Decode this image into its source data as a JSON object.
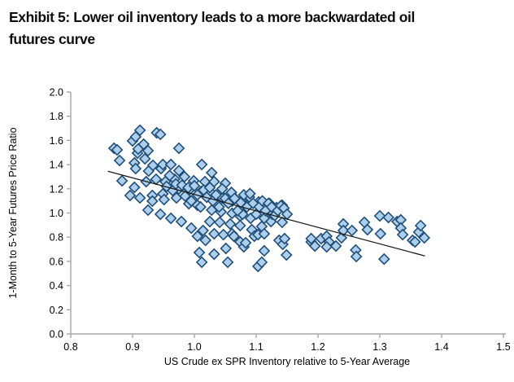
{
  "header": {
    "title_line1": "Exhibit 5: Lower oil inventory leads to a more backwardated oil",
    "title_line2": "futures curve"
  },
  "chart_data": {
    "type": "scatter",
    "title": "Exhibit 5: Lower oil inventory leads to a more backwardated oil futures curve",
    "xlabel": "US Crude ex SPR Inventory relative to 5-Year Average",
    "ylabel": "1-Month to 5-Year Futures Price Ratio",
    "xlim": [
      0.8,
      1.5
    ],
    "ylim": [
      0.0,
      2.0
    ],
    "xticks": [
      0.8,
      0.9,
      1.0,
      1.1,
      1.2,
      1.3,
      1.4,
      1.5
    ],
    "yticks": [
      0.0,
      0.2,
      0.4,
      0.6,
      0.8,
      1.0,
      1.2,
      1.4,
      1.6,
      1.8,
      2.0
    ],
    "grid": false,
    "legend_position": "none",
    "colors": {
      "marker_fill": "#ADCFEC",
      "marker_stroke": "#1F4E79",
      "axis": "#A6A6A6",
      "tick_text": "#000000",
      "trendline": "#1A1A1A"
    },
    "marker_shape": "diamond",
    "trendline": {
      "x1": 0.86,
      "y1": 1.345,
      "x2": 1.373,
      "y2": 0.645
    },
    "points": [
      [
        0.87,
        1.535
      ],
      [
        0.875,
        1.522
      ],
      [
        0.879,
        1.434
      ],
      [
        0.883,
        1.266
      ],
      [
        0.896,
        1.145
      ],
      [
        0.9,
        1.596
      ],
      [
        0.903,
        1.414
      ],
      [
        0.903,
        1.212
      ],
      [
        0.905,
        1.63
      ],
      [
        0.905,
        1.367
      ],
      [
        0.908,
        1.495
      ],
      [
        0.912,
        1.684
      ],
      [
        0.909,
        1.529
      ],
      [
        0.912,
        1.125
      ],
      [
        0.918,
        1.569
      ],
      [
        0.92,
        1.448
      ],
      [
        0.922,
        1.259
      ],
      [
        0.925,
        1.515
      ],
      [
        0.925,
        1.024
      ],
      [
        0.926,
        1.347
      ],
      [
        0.932,
        1.145
      ],
      [
        0.932,
        1.098
      ],
      [
        0.933,
        1.394
      ],
      [
        0.938,
        1.279
      ],
      [
        0.939,
        1.663
      ],
      [
        0.945,
        1.65
      ],
      [
        0.945,
        0.99
      ],
      [
        0.946,
        1.367
      ],
      [
        0.949,
        1.401
      ],
      [
        0.949,
        1.158
      ],
      [
        0.951,
        1.111
      ],
      [
        0.953,
        1.259
      ],
      [
        0.962,
        1.401
      ],
      [
        0.962,
        0.956
      ],
      [
        0.968,
        1.279
      ],
      [
        0.971,
        1.125
      ],
      [
        0.975,
        1.535
      ],
      [
        0.975,
        1.199
      ],
      [
        0.979,
        0.929
      ],
      [
        0.984,
        1.3
      ],
      [
        0.991,
        1.077
      ],
      [
        0.992,
        1.192
      ],
      [
        0.995,
        0.875
      ],
      [
        0.999,
        1.266
      ],
      [
        1.005,
        1.064
      ],
      [
        1.005,
        0.808
      ],
      [
        1.008,
        0.673
      ],
      [
        1.011,
        1.178
      ],
      [
        1.012,
        1.401
      ],
      [
        1.012,
        0.593
      ],
      [
        1.014,
        0.855
      ],
      [
        1.017,
        1.259
      ],
      [
        1.018,
        0.774
      ],
      [
        1.025,
        1.178
      ],
      [
        1.028,
        1.333
      ],
      [
        1.032,
        1.259
      ],
      [
        1.032,
        0.828
      ],
      [
        1.032,
        0.66
      ],
      [
        1.041,
        1.158
      ],
      [
        1.041,
        0.923
      ],
      [
        1.05,
        1.246
      ],
      [
        1.051,
        0.707
      ],
      [
        1.054,
        0.593
      ],
      [
        1.058,
        0.909
      ],
      [
        1.061,
        1.145
      ],
      [
        1.061,
        0.828
      ],
      [
        1.064,
        0.808
      ],
      [
        1.025,
        0.929
      ],
      [
        1.028,
        1.024
      ],
      [
        1.03,
        1.111
      ],
      [
        1.043,
        1.01
      ],
      [
        1.045,
        1.125
      ],
      [
        1.047,
        0.821
      ],
      [
        1.061,
        1.098
      ],
      [
        1.061,
        0.997
      ],
      [
        1.074,
        0.976
      ],
      [
        1.074,
        0.896
      ],
      [
        1.074,
        0.761
      ],
      [
        1.076,
        1.111
      ],
      [
        1.078,
        0.99
      ],
      [
        1.08,
        0.72
      ],
      [
        1.083,
        0.754
      ],
      [
        1.084,
        1.057
      ],
      [
        1.089,
        1.131
      ],
      [
        1.091,
        0.956
      ],
      [
        1.093,
        0.862
      ],
      [
        1.097,
        0.808
      ],
      [
        1.103,
        0.821
      ],
      [
        1.103,
        0.559
      ],
      [
        1.104,
        1.091
      ],
      [
        1.107,
        1.077
      ],
      [
        1.109,
        0.889
      ],
      [
        1.109,
        0.593
      ],
      [
        1.111,
        1.057
      ],
      [
        1.113,
        0.956
      ],
      [
        1.113,
        0.828
      ],
      [
        1.113,
        0.687
      ],
      [
        1.122,
        1.077
      ],
      [
        1.124,
        0.929
      ],
      [
        1.126,
        0.99
      ],
      [
        1.133,
        1.044
      ],
      [
        1.137,
        0.774
      ],
      [
        1.142,
        1.064
      ],
      [
        1.142,
        0.923
      ],
      [
        1.143,
        0.741
      ],
      [
        1.146,
        0.788
      ],
      [
        1.149,
        0.653
      ],
      [
        1.189,
        0.761
      ],
      [
        1.189,
        0.788
      ],
      [
        1.195,
        0.727
      ],
      [
        1.205,
        0.788
      ],
      [
        1.214,
        0.808
      ],
      [
        1.218,
        0.761
      ],
      [
        1.214,
        0.72
      ],
      [
        1.229,
        0.727
      ],
      [
        1.238,
        0.795
      ],
      [
        1.241,
        0.909
      ],
      [
        1.241,
        0.855
      ],
      [
        1.255,
        0.855
      ],
      [
        1.261,
        0.694
      ],
      [
        1.262,
        0.64
      ],
      [
        1.275,
        0.923
      ],
      [
        1.28,
        0.862
      ],
      [
        1.3,
        0.976
      ],
      [
        1.301,
        0.828
      ],
      [
        1.307,
        0.619
      ],
      [
        1.314,
        0.963
      ],
      [
        1.328,
        0.929
      ],
      [
        1.334,
        0.943
      ],
      [
        1.334,
        0.875
      ],
      [
        1.337,
        0.821
      ],
      [
        1.353,
        0.774
      ],
      [
        1.357,
        0.761
      ],
      [
        1.363,
        0.842
      ],
      [
        1.366,
        0.896
      ],
      [
        1.372,
        0.795
      ],
      [
        0.955,
        1.22
      ],
      [
        0.96,
        1.31
      ],
      [
        0.965,
        1.185
      ],
      [
        0.97,
        1.24
      ],
      [
        0.975,
        1.35
      ],
      [
        0.98,
        1.23
      ],
      [
        0.985,
        1.14
      ],
      [
        0.99,
        1.21
      ],
      [
        0.995,
        1.1
      ],
      [
        1.0,
        1.225
      ],
      [
        1.005,
        1.15
      ],
      [
        1.01,
        1.05
      ],
      [
        1.015,
        1.19
      ],
      [
        1.02,
        1.13
      ],
      [
        1.025,
        1.21
      ],
      [
        1.03,
        1.1
      ],
      [
        1.035,
        1.15
      ],
      [
        1.04,
        1.05
      ],
      [
        1.045,
        1.2
      ],
      [
        1.05,
        1.12
      ],
      [
        1.055,
        1.08
      ],
      [
        1.06,
        1.17
      ],
      [
        1.065,
        1.12
      ],
      [
        1.07,
        1.02
      ],
      [
        1.075,
        1.085
      ],
      [
        1.08,
        1.15
      ],
      [
        1.085,
        1.05
      ],
      [
        1.09,
        1.16
      ],
      [
        1.095,
        1.08
      ],
      [
        1.1,
        0.99
      ],
      [
        1.105,
        1.05
      ],
      [
        1.11,
        1.1
      ],
      [
        1.115,
        1.02
      ],
      [
        1.12,
        1.08
      ],
      [
        1.125,
        1.05
      ],
      [
        1.13,
        0.98
      ],
      [
        1.135,
        1.02
      ],
      [
        1.14,
        1.06
      ],
      [
        1.145,
        1.04
      ],
      [
        1.15,
        0.99
      ]
    ]
  }
}
